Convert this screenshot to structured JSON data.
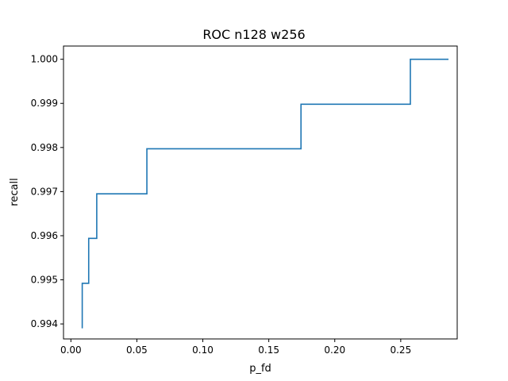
{
  "chart_data": {
    "type": "line",
    "title": "ROC n128  w256",
    "xlabel": "p_fd",
    "ylabel": "recall",
    "xlim": [
      -0.0056,
      0.2928
    ],
    "ylim": [
      0.99366,
      1.0003
    ],
    "grid": false,
    "xticks": [
      0.0,
      0.05,
      0.1,
      0.15,
      0.2,
      0.25
    ],
    "xtick_labels": [
      "0.00",
      "0.05",
      "0.10",
      "0.15",
      "0.20",
      "0.25"
    ],
    "yticks": [
      0.994,
      0.995,
      0.996,
      0.997,
      0.998,
      0.999,
      1.0
    ],
    "ytick_labels": [
      "0.994",
      "0.995",
      "0.996",
      "0.997",
      "0.998",
      "0.999",
      "1.000"
    ],
    "series": [
      {
        "color": "#1f77b4",
        "step": "vertical-first",
        "x": [
          0.0086,
          0.0086,
          0.0135,
          0.0135,
          0.0196,
          0.0196,
          0.0576,
          0.0576,
          0.1744,
          0.1744,
          0.2573,
          0.2573,
          0.2862
        ],
        "y": [
          0.9939,
          0.99492,
          0.99492,
          0.99594,
          0.99594,
          0.99695,
          0.99695,
          0.99797,
          0.99797,
          0.99898,
          0.99898,
          1.0,
          1.0
        ]
      }
    ]
  }
}
